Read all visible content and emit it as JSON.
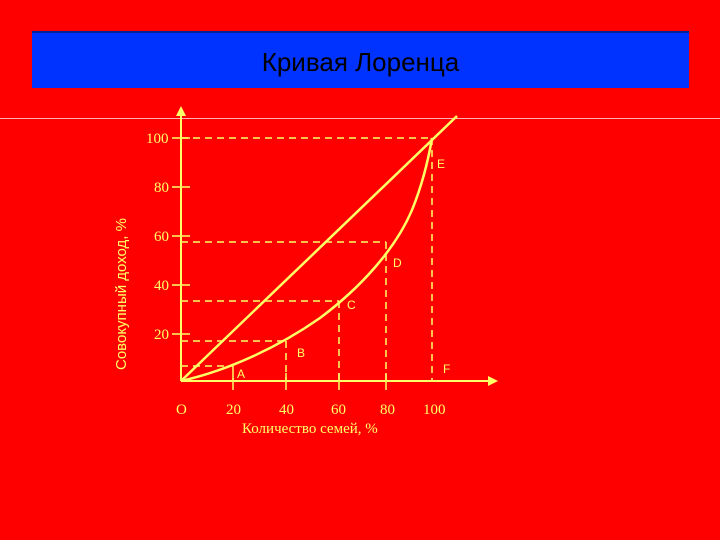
{
  "title": "Кривая Лоренца",
  "y_axis_label": "Совокупный доход, %",
  "x_axis_label": "Количество семей, %",
  "origin_label": "O",
  "x_ticks": [
    "20",
    "40",
    "60",
    "80",
    "100"
  ],
  "y_ticks": [
    "100",
    "80",
    "60",
    "40",
    "20"
  ],
  "points": {
    "A": "A",
    "B": "B",
    "C": "C",
    "D": "D",
    "E": "E",
    "F": "F"
  },
  "colors": {
    "background": "#ff0000",
    "title_bar": "#0033ff",
    "lines": "#ffff66",
    "text": "#ffff66"
  }
}
